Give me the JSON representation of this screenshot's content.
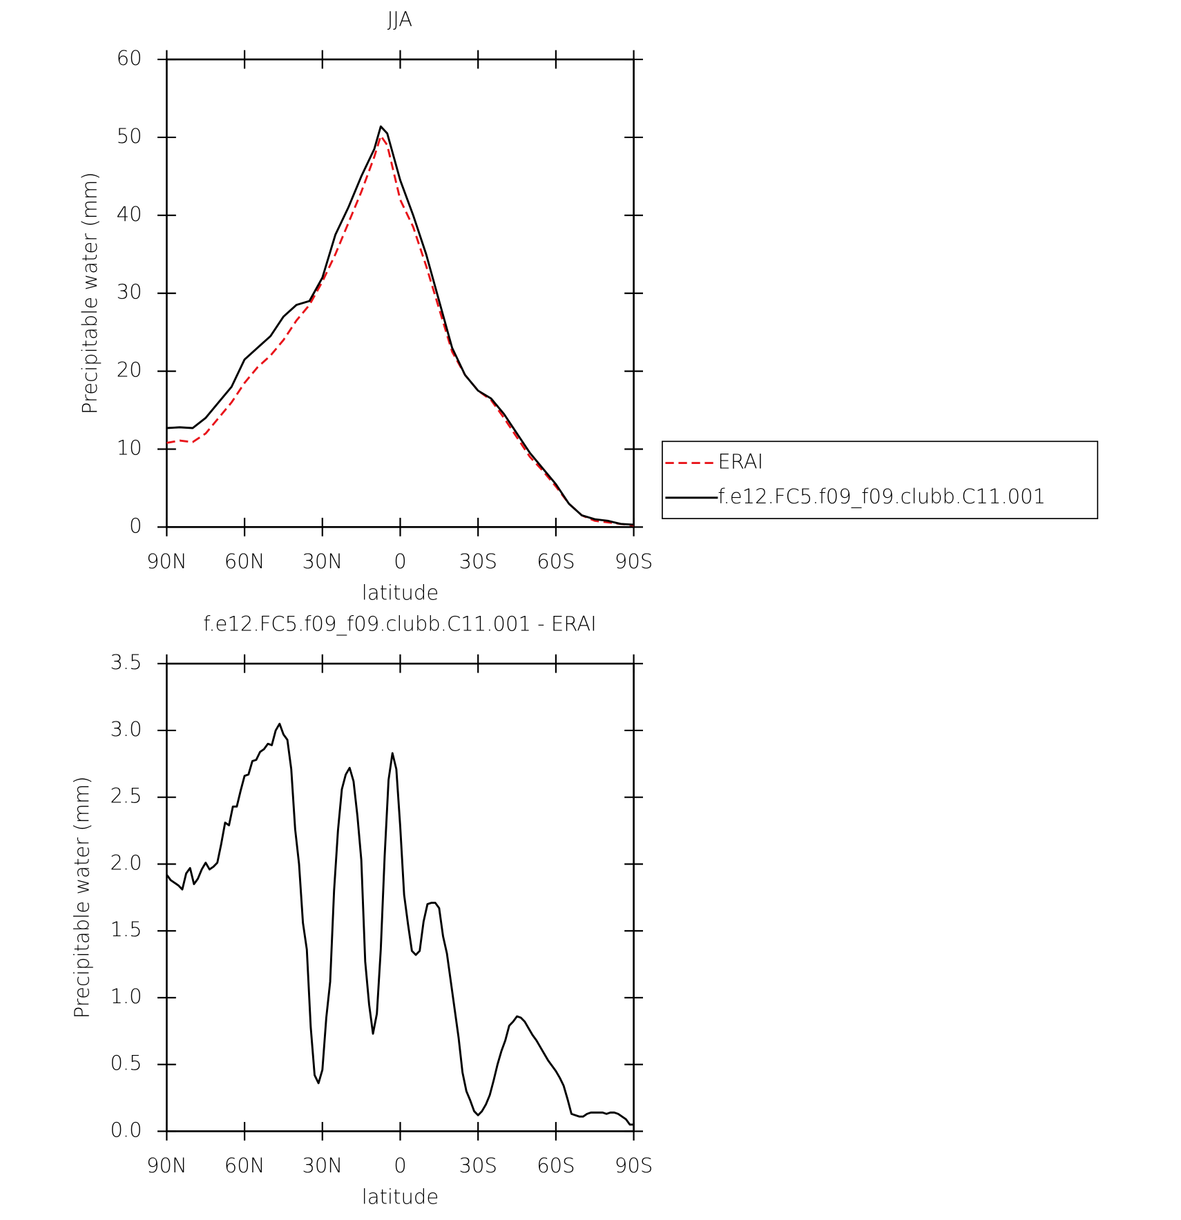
{
  "chart_data": [
    {
      "type": "line",
      "title": "JJA",
      "x_label": "latitude",
      "y_label": "Precipitable water (mm)",
      "x": [
        90,
        85,
        80,
        75,
        70,
        65,
        60,
        55,
        50,
        45,
        40,
        35,
        30,
        25,
        20,
        15,
        10,
        7.5,
        5,
        0,
        -5,
        -10,
        -15,
        -20,
        -25,
        -30,
        -35,
        -40,
        -45,
        -50,
        -55,
        -60,
        -65,
        -70,
        -75,
        -80,
        -85,
        -90
      ],
      "series": [
        {
          "name": "ERAI",
          "color": "#e8141a",
          "line_style": "dashed",
          "values": [
            10.8,
            11.1,
            10.9,
            12,
            14,
            16,
            18.5,
            20.5,
            22,
            24,
            26.5,
            28.5,
            31.5,
            35,
            39,
            43,
            47.5,
            50.2,
            49,
            42,
            38.5,
            33.5,
            28,
            22.5,
            19.5,
            17.5,
            16.3,
            14,
            11.5,
            9,
            7.2,
            5.2,
            3,
            1.5,
            0.8,
            0.6,
            0.4,
            0.2
          ]
        },
        {
          "name": "f.e12.FC5.f09_f09.clubb.C11.001",
          "color": "#000000",
          "line_style": "solid",
          "values": [
            12.7,
            12.8,
            12.7,
            14,
            16,
            18,
            21.5,
            23,
            24.5,
            27,
            28.5,
            29,
            32,
            37.5,
            41,
            45,
            48.5,
            51.4,
            50.5,
            44.5,
            40,
            35,
            29,
            23,
            19.5,
            17.5,
            16.5,
            14.5,
            12,
            9.5,
            7.5,
            5.5,
            3,
            1.5,
            1.0,
            0.8,
            0.4,
            0.3
          ]
        }
      ],
      "xlim": [
        90,
        -90
      ],
      "xticks": [
        {
          "value": 90,
          "label": "90N"
        },
        {
          "value": 60,
          "label": "60N"
        },
        {
          "value": 30,
          "label": "30N"
        },
        0,
        {
          "value": -30,
          "label": "30S"
        },
        {
          "value": -60,
          "label": "60S"
        },
        {
          "value": -90,
          "label": "90S"
        }
      ],
      "ylim": [
        0,
        60
      ],
      "yticks": [
        0,
        10,
        20,
        30,
        40,
        50,
        60
      ],
      "legend": "right"
    },
    {
      "type": "line",
      "title": "f.e12.FC5.f09_f09.clubb.C11.001 - ERAI",
      "x_label": "latitude",
      "y_label": "Precipitable water (mm)",
      "x": [
        90,
        88.5,
        87,
        85.5,
        84,
        82.5,
        81,
        79.5,
        78,
        76.5,
        75,
        73.5,
        72,
        70.5,
        69,
        67.5,
        66,
        64.5,
        63,
        61.5,
        60,
        58.5,
        57,
        55.5,
        54,
        52.5,
        51,
        49.5,
        48,
        46.5,
        45,
        43.5,
        42,
        40.5,
        39,
        37.5,
        36,
        34.5,
        33,
        31.5,
        30,
        28.5,
        27,
        25.5,
        24,
        22.5,
        21,
        19.5,
        18,
        16.5,
        15,
        13.5,
        12,
        10.5,
        9,
        7.5,
        6,
        4.5,
        3,
        1.5,
        0,
        -1.5,
        -3,
        -4.5,
        -6,
        -7.5,
        -9,
        -10.5,
        -12,
        -13.5,
        -15,
        -16.5,
        -18,
        -19.5,
        -21,
        -22.5,
        -24,
        -25.5,
        -27,
        -28.5,
        -30,
        -31.5,
        -33,
        -34.5,
        -36,
        -37.5,
        -39,
        -40.5,
        -42,
        -43.5,
        -45,
        -46.5,
        -48,
        -49.5,
        -51,
        -52.5,
        -54,
        -55.5,
        -57,
        -58.5,
        -60,
        -61.5,
        -63,
        -64.5,
        -66,
        -67.5,
        -69,
        -70.5,
        -72,
        -73.5,
        -75,
        -76.5,
        -78,
        -79.5,
        -81,
        -82.5,
        -84,
        -85.5,
        -87,
        -88.5,
        -90
      ],
      "values": [
        1.92,
        1.88,
        1.86,
        1.84,
        1.81,
        1.93,
        1.97,
        1.85,
        1.89,
        1.96,
        2.01,
        1.96,
        1.98,
        2.01,
        2.15,
        2.31,
        2.29,
        2.43,
        2.43,
        2.55,
        2.66,
        2.67,
        2.77,
        2.78,
        2.84,
        2.86,
        2.9,
        2.89,
        3.0,
        3.05,
        2.97,
        2.93,
        2.71,
        2.26,
        2.0,
        1.56,
        1.36,
        0.78,
        0.42,
        0.36,
        0.46,
        0.85,
        1.12,
        1.8,
        2.25,
        2.56,
        2.67,
        2.72,
        2.62,
        2.36,
        2.03,
        1.27,
        0.95,
        0.73,
        0.88,
        1.36,
        2.06,
        2.63,
        2.83,
        2.71,
        2.28,
        1.77,
        1.55,
        1.35,
        1.32,
        1.35,
        1.57,
        1.7,
        1.71,
        1.71,
        1.67,
        1.46,
        1.33,
        1.12,
        0.91,
        0.7,
        0.44,
        0.3,
        0.23,
        0.15,
        0.12,
        0.15,
        0.2,
        0.27,
        0.38,
        0.5,
        0.6,
        0.68,
        0.79,
        0.82,
        0.86,
        0.85,
        0.82,
        0.77,
        0.72,
        0.68,
        0.63,
        0.58,
        0.53,
        0.49,
        0.45,
        0.4,
        0.34,
        0.24,
        0.13,
        0.12,
        0.11,
        0.11,
        0.13,
        0.14,
        0.14,
        0.14,
        0.14,
        0.13,
        0.14,
        0.14,
        0.13,
        0.11,
        0.09,
        0.05,
        0.05
      ],
      "color": "#000000",
      "xlim": [
        90,
        -90
      ],
      "xticks": [
        {
          "value": 90,
          "label": "90N"
        },
        {
          "value": 60,
          "label": "60N"
        },
        {
          "value": 30,
          "label": "30N"
        },
        0,
        {
          "value": -30,
          "label": "30S"
        },
        {
          "value": -60,
          "label": "60S"
        },
        {
          "value": -90,
          "label": "90S"
        }
      ],
      "ylim": [
        0,
        3.5
      ],
      "yticks": [
        {
          "value": 0,
          "label": "0.0"
        },
        0.5,
        {
          "value": 1,
          "label": "1.0"
        },
        1.5,
        {
          "value": 2,
          "label": "2.0"
        },
        2.5,
        {
          "value": 3,
          "label": "3.0"
        },
        3.5
      ]
    }
  ]
}
